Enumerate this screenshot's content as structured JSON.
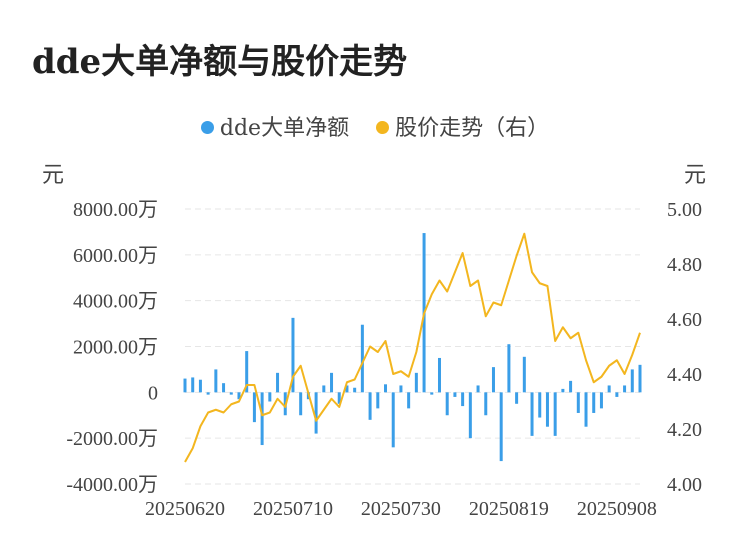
{
  "chart_data": {
    "type": "bar+line",
    "title": "dde大单净额与股价走势",
    "left_axis_unit": "元",
    "right_axis_unit": "元",
    "legend": [
      {
        "name": "dde大单净额",
        "color": "#3a9ee8"
      },
      {
        "name": "股价走势（右）",
        "color": "#f3b61f"
      }
    ],
    "y_left": {
      "min": -4000,
      "max": 8000,
      "step": 2000,
      "tick_labels": [
        "-4000.00万",
        "-2000.00万",
        "0",
        "2000.00万",
        "4000.00万",
        "6000.00万",
        "8000.00万"
      ]
    },
    "y_right": {
      "min": 4.0,
      "max": 5.0,
      "step": 0.2,
      "tick_labels": [
        "4.00",
        "4.20",
        "4.40",
        "4.60",
        "4.80",
        "5.00"
      ]
    },
    "x_tick_labels": [
      "20250620",
      "20250710",
      "20250730",
      "20250819",
      "20250908"
    ],
    "x_tick_indices": [
      0,
      14,
      28,
      42,
      56
    ],
    "grid": true,
    "series": [
      {
        "name": "dde大单净额",
        "type": "bar",
        "unit": "万元",
        "values": [
          600,
          650,
          550,
          -100,
          1000,
          400,
          -100,
          -300,
          1800,
          -1300,
          -2300,
          -400,
          850,
          -1000,
          3250,
          -1000,
          -300,
          -1800,
          300,
          850,
          -500,
          300,
          200,
          2950,
          -1200,
          -700,
          350,
          -2400,
          300,
          -700,
          850,
          6950,
          -100,
          1500,
          -1000,
          -200,
          -600,
          -2000,
          300,
          -1000,
          1100,
          -3000,
          2100,
          -500,
          1550,
          -1900,
          -1100,
          -1500,
          -1900,
          150,
          500,
          -900,
          -1500,
          -900,
          -700,
          300,
          -200,
          300,
          1000,
          1200
        ]
      },
      {
        "name": "股价走势（右）",
        "type": "line",
        "axis": "right",
        "values": [
          4.08,
          4.13,
          4.21,
          4.26,
          4.27,
          4.26,
          4.29,
          4.3,
          4.36,
          4.36,
          4.25,
          4.26,
          4.31,
          4.28,
          4.39,
          4.43,
          4.33,
          4.23,
          4.27,
          4.31,
          4.28,
          4.37,
          4.38,
          4.44,
          4.5,
          4.48,
          4.52,
          4.4,
          4.41,
          4.39,
          4.48,
          4.62,
          4.69,
          4.74,
          4.7,
          4.77,
          4.84,
          4.72,
          4.74,
          4.61,
          4.66,
          4.65,
          4.74,
          4.83,
          4.91,
          4.77,
          4.73,
          4.72,
          4.52,
          4.57,
          4.53,
          4.55,
          4.45,
          4.37,
          4.39,
          4.43,
          4.45,
          4.4,
          4.47,
          4.55
        ]
      }
    ]
  }
}
